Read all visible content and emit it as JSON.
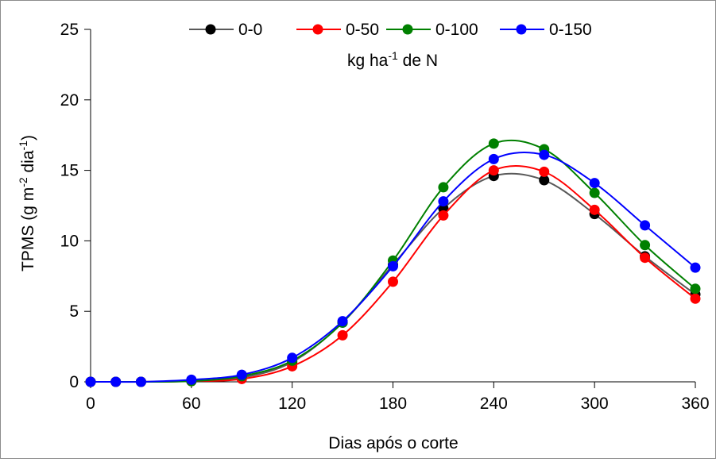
{
  "chart_data": {
    "type": "line",
    "title": "",
    "xlabel": "Dias após o corte",
    "ylabel": {
      "base": "TPMS (g m",
      "sup1": "-2",
      "mid": " dia",
      "sup2": "-1",
      "end": ")"
    },
    "xlim": [
      0,
      360
    ],
    "ylim": [
      0,
      25
    ],
    "x_ticks": [
      0,
      60,
      120,
      180,
      240,
      300,
      360
    ],
    "y_ticks": [
      0,
      5,
      10,
      15,
      20,
      25
    ],
    "grid": false,
    "legend": {
      "position": "top-center",
      "subtitle": {
        "base": "kg ha",
        "sup": "-1",
        "end": " de N"
      }
    },
    "x": [
      0,
      15,
      30,
      60,
      90,
      120,
      150,
      180,
      210,
      240,
      270,
      300,
      330,
      360
    ],
    "series": [
      {
        "name": "0-0",
        "color": "#000000",
        "line_color": "#595959",
        "values": [
          0,
          0,
          0,
          0.05,
          0.3,
          1.4,
          4.2,
          8.3,
          12.3,
          14.6,
          14.3,
          11.9,
          8.9,
          6.2
        ]
      },
      {
        "name": "0-50",
        "color": "#ff0000",
        "line_color": "#ff0000",
        "values": [
          0,
          0,
          0,
          0.05,
          0.2,
          1.1,
          3.3,
          7.1,
          11.8,
          15.0,
          14.9,
          12.2,
          8.8,
          5.9
        ]
      },
      {
        "name": "0-100",
        "color": "#008000",
        "line_color": "#008000",
        "values": [
          0,
          0,
          0,
          0.05,
          0.4,
          1.5,
          4.2,
          8.6,
          13.8,
          16.9,
          16.5,
          13.4,
          9.7,
          6.6
        ]
      },
      {
        "name": "0-150",
        "color": "#0000ff",
        "line_color": "#0000ff",
        "values": [
          0,
          0,
          0,
          0.15,
          0.5,
          1.7,
          4.3,
          8.2,
          12.8,
          15.8,
          16.1,
          14.1,
          11.1,
          8.1
        ]
      }
    ]
  }
}
